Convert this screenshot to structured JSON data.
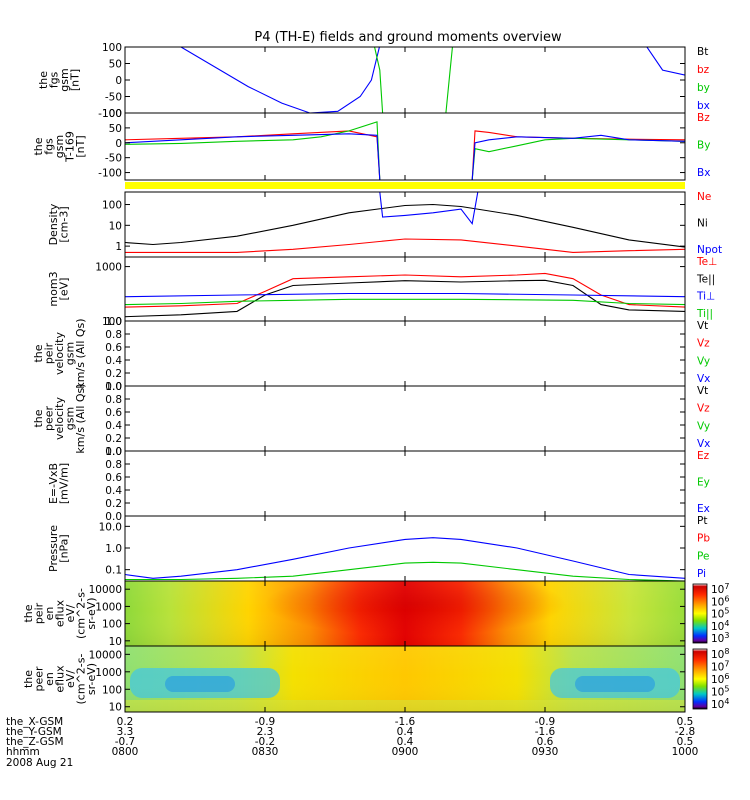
{
  "title": "P4 (TH-E) fields and ground moments overview",
  "chart_data": {
    "type": "line",
    "x_ticks": [
      "0800",
      "0830",
      "0900",
      "0930",
      "1000"
    ],
    "date_label": "2008 Aug 21",
    "ephemeris": [
      {
        "name": "the_X-GSM",
        "values": [
          "0.2",
          "-0.9",
          "-1.6",
          "-0.9",
          "0.5"
        ]
      },
      {
        "name": "the_Y-GSM",
        "values": [
          "3.3",
          "2.3",
          "0.4",
          "-1.6",
          "-2.8"
        ]
      },
      {
        "name": "the_Z-GSM",
        "values": [
          "-0.7",
          "-0.2",
          "0.4",
          "0.6",
          "0.5"
        ]
      },
      {
        "name": "hhmm",
        "values": [
          "0800",
          "0830",
          "0900",
          "0930",
          "1000"
        ]
      }
    ],
    "panels": [
      {
        "ylabel": [
          "the",
          "fgs",
          "gsm",
          "[nT]"
        ],
        "ylim": [
          -100,
          100
        ],
        "scale": "linear",
        "yticks": [
          "100",
          "50",
          "0",
          "-50",
          "-100"
        ],
        "legend": [
          {
            "name": "Bt",
            "color": "#000000"
          },
          {
            "name": "bz",
            "color": "#ff0000"
          },
          {
            "name": "by",
            "color": "#00c800"
          },
          {
            "name": "bx",
            "color": "#0000ff"
          }
        ],
        "series": [
          {
            "name": "bx",
            "color": "#0000ff",
            "x": [
              0.0,
              0.1,
              0.22,
              0.28,
              0.33,
              0.38,
              0.42,
              0.44,
              0.455
            ],
            "y": [
              105,
              100,
              -20,
              -70,
              -100,
              -95,
              -50,
              0,
              105
            ]
          },
          {
            "name": "bx",
            "color": "#0000ff",
            "x": [
              0.635,
              0.64,
              0.68
            ],
            "y": [
              105,
              105,
              105
            ]
          },
          {
            "name": "bx",
            "color": "#0000ff",
            "x": [
              0.93,
              0.96,
              1.0
            ],
            "y": [
              105,
              30,
              15
            ]
          },
          {
            "name": "by",
            "color": "#00c800",
            "x": [
              0.445,
              0.455,
              0.46
            ],
            "y": [
              105,
              30,
              -105
            ]
          },
          {
            "name": "by",
            "color": "#00c800",
            "x": [
              0.573,
              0.58,
              0.585
            ],
            "y": [
              -105,
              20,
              105
            ]
          }
        ]
      },
      {
        "ylabel": [
          "the",
          "fgs",
          "gsm",
          "T-169",
          "[nT]"
        ],
        "ylim": [
          -125,
          100
        ],
        "scale": "linear",
        "yticks": [
          "100",
          "50",
          "0",
          "-50",
          "-100"
        ],
        "legend": [
          {
            "name": "Bz",
            "color": "#ff0000"
          },
          {
            "name": "By",
            "color": "#00c800"
          },
          {
            "name": "Bx",
            "color": "#0000ff"
          }
        ],
        "series": [
          {
            "name": "Bz",
            "color": "#ff0000",
            "x": [
              0.0,
              0.1,
              0.2,
              0.3,
              0.4,
              0.45,
              0.455
            ],
            "y": [
              10,
              15,
              20,
              30,
              40,
              20,
              -125
            ]
          },
          {
            "name": "Bz",
            "color": "#ff0000",
            "x": [
              0.62,
              0.625,
              0.65,
              0.7,
              0.8,
              0.9,
              1.0
            ],
            "y": [
              -125,
              40,
              35,
              20,
              15,
              12,
              10
            ]
          },
          {
            "name": "By",
            "color": "#00c800",
            "x": [
              0.0,
              0.1,
              0.2,
              0.3,
              0.35,
              0.4,
              0.45,
              0.455
            ],
            "y": [
              -5,
              -2,
              5,
              10,
              20,
              40,
              70,
              -125
            ]
          },
          {
            "name": "By",
            "color": "#00c800",
            "x": [
              0.62,
              0.625,
              0.65,
              0.7,
              0.75,
              0.8,
              0.9,
              1.0
            ],
            "y": [
              -125,
              -20,
              -30,
              -10,
              10,
              15,
              10,
              5
            ]
          },
          {
            "name": "Bx",
            "color": "#0000ff",
            "x": [
              0.0,
              0.1,
              0.2,
              0.3,
              0.4,
              0.45,
              0.455
            ],
            "y": [
              0,
              10,
              20,
              25,
              30,
              25,
              -125
            ]
          },
          {
            "name": "Bx",
            "color": "#0000ff",
            "x": [
              0.62,
              0.625,
              0.65,
              0.7,
              0.8,
              0.85,
              0.9,
              1.0
            ],
            "y": [
              -125,
              0,
              10,
              20,
              15,
              25,
              10,
              5
            ]
          }
        ]
      },
      {
        "ylabel": [
          "Density",
          "[cm-3]"
        ],
        "ylim": [
          0.3,
          400
        ],
        "scale": "log",
        "yticks": [
          "100",
          "10",
          "1"
        ],
        "legend": [
          {
            "name": "Ne",
            "color": "#ff0000"
          },
          {
            "name": "Ni",
            "color": "#000000"
          },
          {
            "name": "Npot",
            "color": "#0000ff"
          }
        ],
        "series": [
          {
            "name": "Ni",
            "color": "#000000",
            "x": [
              0.0,
              0.05,
              0.1,
              0.2,
              0.3,
              0.4,
              0.5,
              0.55,
              0.6,
              0.7,
              0.8,
              0.9,
              1.0
            ],
            "y": [
              1.5,
              1.2,
              1.5,
              3,
              10,
              40,
              90,
              100,
              80,
              30,
              8,
              2,
              0.9
            ]
          },
          {
            "name": "Ne",
            "color": "#ff0000",
            "x": [
              0.0,
              0.1,
              0.2,
              0.3,
              0.4,
              0.5,
              0.6,
              0.7,
              0.8,
              0.9,
              1.0
            ],
            "y": [
              0.5,
              0.5,
              0.5,
              0.7,
              1.2,
              2.2,
              2.0,
              1.0,
              0.5,
              0.6,
              0.7
            ]
          },
          {
            "name": "Npot",
            "color": "#0000ff",
            "x": [
              0.455,
              0.46,
              0.5,
              0.55,
              0.6,
              0.62,
              0.63
            ],
            "y": [
              400,
              25,
              30,
              40,
              60,
              12,
              400
            ]
          }
        ]
      },
      {
        "ylabel": [
          "mom3",
          "[eV]"
        ],
        "ylim": [
          100,
          1500
        ],
        "scale": "log",
        "yticks": [
          "1000",
          "100"
        ],
        "legend": [
          {
            "name": "Te⊥",
            "color": "#ff0000"
          },
          {
            "name": "Te||",
            "color": "#000000"
          },
          {
            "name": "Ti⊥",
            "color": "#0000ff"
          },
          {
            "name": "Ti||",
            "color": "#00c800"
          }
        ],
        "series": [
          {
            "name": "Te⊥",
            "color": "#ff0000",
            "x": [
              0.0,
              0.1,
              0.2,
              0.25,
              0.3,
              0.4,
              0.5,
              0.6,
              0.7,
              0.75,
              0.8,
              0.85,
              0.9,
              1.0
            ],
            "y": [
              180,
              190,
              210,
              350,
              600,
              650,
              700,
              650,
              700,
              750,
              600,
              300,
              200,
              180
            ]
          },
          {
            "name": "Te||",
            "color": "#000000",
            "x": [
              0.0,
              0.1,
              0.2,
              0.25,
              0.3,
              0.4,
              0.5,
              0.6,
              0.7,
              0.75,
              0.8,
              0.85,
              0.9,
              1.0
            ],
            "y": [
              120,
              130,
              150,
              300,
              450,
              500,
              550,
              520,
              550,
              560,
              450,
              200,
              160,
              150
            ]
          },
          {
            "name": "Ti⊥",
            "color": "#0000ff",
            "x": [
              0.0,
              0.2,
              0.4,
              0.6,
              0.8,
              1.0
            ],
            "y": [
              280,
              300,
              320,
              320,
              300,
              280
            ]
          },
          {
            "name": "Ti||",
            "color": "#00c800",
            "x": [
              0.0,
              0.1,
              0.2,
              0.3,
              0.4,
              0.6,
              0.8,
              0.9,
              1.0
            ],
            "y": [
              200,
              210,
              230,
              240,
              250,
              250,
              240,
              210,
              200
            ]
          }
        ]
      },
      {
        "ylabel": [
          "the",
          "peir",
          "velocity",
          "gsm",
          "km/s (All Qs)"
        ],
        "ylim": [
          0,
          1
        ],
        "scale": "linear",
        "yticks": [
          "1.0",
          "0.8",
          "0.6",
          "0.4",
          "0.2",
          "0.0"
        ],
        "legend": [
          {
            "name": "Vt",
            "color": "#000000"
          },
          {
            "name": "Vz",
            "color": "#ff0000"
          },
          {
            "name": "Vy",
            "color": "#00c800"
          },
          {
            "name": "Vx",
            "color": "#0000ff"
          }
        ],
        "series": []
      },
      {
        "ylabel": [
          "the",
          "peer",
          "velocity",
          "gsm",
          "km/s (All Qs)"
        ],
        "ylim": [
          0,
          1
        ],
        "scale": "linear",
        "yticks": [
          "1.0",
          "0.8",
          "0.6",
          "0.4",
          "0.2",
          "0.0"
        ],
        "legend": [
          {
            "name": "Vt",
            "color": "#000000"
          },
          {
            "name": "Vz",
            "color": "#ff0000"
          },
          {
            "name": "Vy",
            "color": "#00c800"
          },
          {
            "name": "Vx",
            "color": "#0000ff"
          }
        ],
        "series": []
      },
      {
        "ylabel": [
          "E=-VxB",
          "[mV/m]"
        ],
        "ylim": [
          0,
          1
        ],
        "scale": "linear",
        "yticks": [
          "1.0",
          "0.8",
          "0.6",
          "0.4",
          "0.2",
          "0.0"
        ],
        "legend": [
          {
            "name": "Ez",
            "color": "#ff0000"
          },
          {
            "name": "Ey",
            "color": "#00c800"
          },
          {
            "name": "Ex",
            "color": "#0000ff"
          }
        ],
        "series": []
      },
      {
        "ylabel": [
          "Pressure",
          "[nPa]"
        ],
        "ylim": [
          0.03,
          30
        ],
        "scale": "log",
        "yticks": [
          "10.0",
          "1.0",
          "0.1"
        ],
        "legend": [
          {
            "name": "Pt",
            "color": "#000000"
          },
          {
            "name": "Pb",
            "color": "#ff0000"
          },
          {
            "name": "Pe",
            "color": "#00c800"
          },
          {
            "name": "Pi",
            "color": "#0000ff"
          }
        ],
        "series": [
          {
            "name": "Pi",
            "color": "#0000ff",
            "x": [
              0.0,
              0.05,
              0.1,
              0.2,
              0.3,
              0.4,
              0.5,
              0.55,
              0.6,
              0.7,
              0.8,
              0.9,
              1.0
            ],
            "y": [
              0.06,
              0.04,
              0.05,
              0.1,
              0.3,
              1.0,
              2.5,
              3.0,
              2.5,
              1.0,
              0.25,
              0.06,
              0.04
            ]
          },
          {
            "name": "Pe",
            "color": "#00c800",
            "x": [
              0.0,
              0.1,
              0.2,
              0.3,
              0.4,
              0.5,
              0.55,
              0.6,
              0.7,
              0.8,
              0.9,
              1.0
            ],
            "y": [
              0.035,
              0.035,
              0.04,
              0.05,
              0.1,
              0.2,
              0.22,
              0.2,
              0.1,
              0.05,
              0.035,
              0.03
            ]
          }
        ]
      },
      {
        "ylabel": [
          "the",
          "peir",
          "en",
          "eflux",
          "eV/",
          "(cm^2-s-",
          "sr-eV)"
        ],
        "ylim": [
          5,
          30000
        ],
        "scale": "log",
        "yticks": [
          "10000",
          "1000",
          "100",
          "10"
        ],
        "colorbar": [
          "10^7",
          "10^6",
          "10^5",
          "10^4",
          "10^3"
        ]
      },
      {
        "ylabel": [
          "the",
          "peer",
          "en",
          "eflux",
          "eV/",
          "(cm^2-s-",
          "sr-eV)"
        ],
        "ylim": [
          5,
          30000
        ],
        "scale": "log",
        "yticks": [
          "10000",
          "1000",
          "100",
          "10"
        ],
        "colorbar": [
          "10^8",
          "10^7",
          "10^6",
          "10^5",
          "10^4"
        ]
      }
    ]
  }
}
